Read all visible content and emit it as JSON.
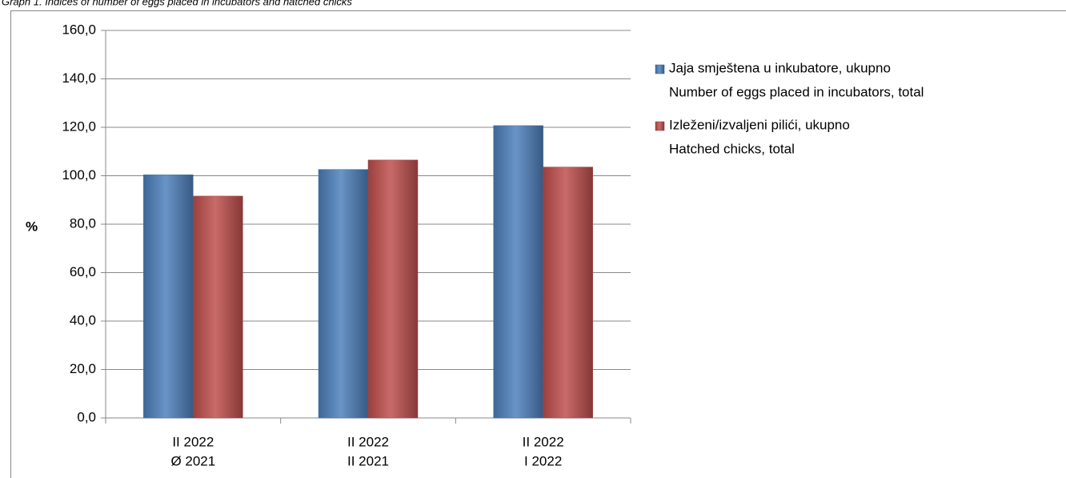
{
  "chart_data": {
    "type": "bar",
    "title": "Graph 1. Indices of number of eggs placed in incubators and hatched chicks",
    "y_label": "%",
    "categories": [
      [
        "II 2022",
        "Ø 2021"
      ],
      [
        "II 2022",
        "II 2021"
      ],
      [
        "II 2022",
        "I 2022"
      ]
    ],
    "series": [
      {
        "name": [
          "Jaja smještena u inkubatore, ukupno",
          "Number  of eggs placed in incubators, total"
        ],
        "color": "#4f81bd",
        "values": [
          100.4,
          102.6,
          120.7
        ]
      },
      {
        "name": [
          "Izleženi/izvaljeni pilići, ukupno",
          "Hatched chicks, total"
        ],
        "color": "#c0504d",
        "values": [
          91.6,
          106.5,
          103.6
        ]
      }
    ],
    "ylim": [
      0,
      160
    ],
    "yticks": [
      {
        "value": 0,
        "label": "0,0"
      },
      {
        "value": 20,
        "label": "20,0"
      },
      {
        "value": 40,
        "label": "40,0"
      },
      {
        "value": 60,
        "label": "60,0"
      },
      {
        "value": 80,
        "label": "80,0"
      },
      {
        "value": 100,
        "label": "100,0"
      },
      {
        "value": 120,
        "label": "120,0"
      },
      {
        "value": 140,
        "label": "140,0"
      },
      {
        "value": 160,
        "label": "160,0"
      }
    ],
    "grid": true,
    "legend": "right"
  }
}
